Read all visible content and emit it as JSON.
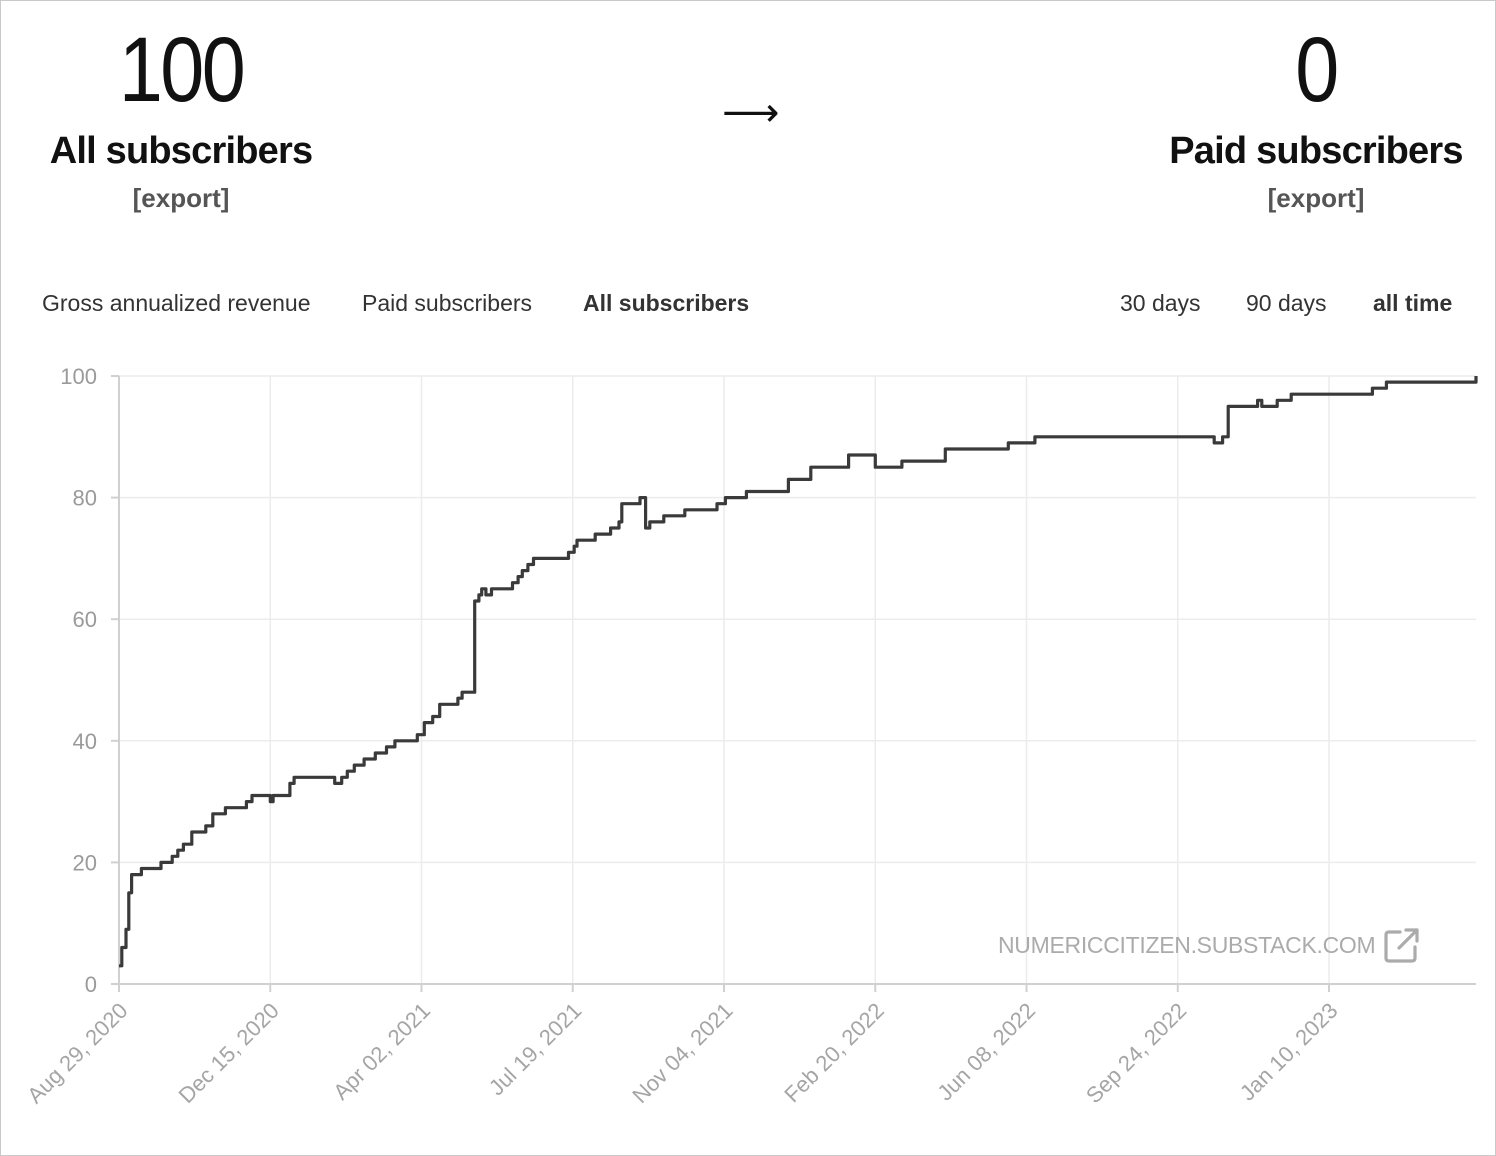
{
  "stats": {
    "left": {
      "value": "100",
      "label": "All subscribers",
      "export": "[export]"
    },
    "arrow": "⟶",
    "right": {
      "value": "0",
      "label": "Paid subscribers",
      "export": "[export]"
    }
  },
  "metric_tabs": [
    {
      "label": "Gross annualized revenue",
      "active": false
    },
    {
      "label": "Paid subscribers",
      "active": false
    },
    {
      "label": "All subscribers",
      "active": true
    }
  ],
  "range_tabs": [
    {
      "label": "30 days",
      "active": false
    },
    {
      "label": "90 days",
      "active": false
    },
    {
      "label": "all time",
      "active": true
    }
  ],
  "watermark": {
    "text": "NUMERICCITIZEN.SUBSTACK.COM",
    "icon": "external-link-icon"
  },
  "colors": {
    "line": "#3a3a3a",
    "grid": "#ececec",
    "label": "#9a9a9a"
  },
  "chart_data": {
    "type": "line",
    "title": "",
    "xlabel": "",
    "ylabel": "",
    "ylim": [
      0,
      100
    ],
    "yticks": [
      0,
      20,
      40,
      60,
      80,
      100
    ],
    "xticks": [
      "Aug 29, 2020",
      "Dec 15, 2020",
      "Apr 02, 2021",
      "Jul 19, 2021",
      "Nov 04, 2021",
      "Feb 20, 2022",
      "Jun 08, 2022",
      "Sep 24, 2022",
      "Jan 10, 2023"
    ],
    "grid": true,
    "series": [
      {
        "name": "",
        "step": true,
        "x": [
          "2020-08-29",
          "2020-08-31",
          "2020-09-03",
          "2020-09-05",
          "2020-09-07",
          "2020-09-10",
          "2020-09-14",
          "2020-09-28",
          "2020-10-06",
          "2020-10-10",
          "2020-10-14",
          "2020-10-20",
          "2020-10-30",
          "2020-11-04",
          "2020-11-09",
          "2020-11-13",
          "2020-11-28",
          "2020-12-02",
          "2020-12-05",
          "2020-12-15",
          "2020-12-17",
          "2020-12-26",
          "2020-12-29",
          "2021-01-01",
          "2021-01-20",
          "2021-01-30",
          "2021-02-04",
          "2021-02-08",
          "2021-02-13",
          "2021-02-20",
          "2021-02-28",
          "2021-03-08",
          "2021-03-14",
          "2021-03-30",
          "2021-04-04",
          "2021-04-10",
          "2021-04-15",
          "2021-04-28",
          "2021-05-01",
          "2021-05-10",
          "2021-05-13",
          "2021-05-15",
          "2021-05-18",
          "2021-05-22",
          "2021-06-02",
          "2021-06-06",
          "2021-06-10",
          "2021-06-13",
          "2021-06-17",
          "2021-06-21",
          "2021-06-26",
          "2021-07-16",
          "2021-07-20",
          "2021-07-22",
          "2021-07-24",
          "2021-07-26",
          "2021-08-04",
          "2021-08-15",
          "2021-08-21",
          "2021-08-23",
          "2021-09-05",
          "2021-09-07",
          "2021-09-09",
          "2021-09-12",
          "2021-09-22",
          "2021-10-07",
          "2021-10-30",
          "2021-11-05",
          "2021-11-20",
          "2021-12-20",
          "2022-01-01",
          "2022-01-05",
          "2022-02-01",
          "2022-02-20",
          "2022-03-09",
          "2022-03-11",
          "2022-04-11",
          "2022-05-26",
          "2022-06-10",
          "2022-06-14",
          "2022-07-28",
          "2022-10-20",
          "2022-10-24",
          "2022-10-26",
          "2022-10-30",
          "2022-11-20",
          "2022-11-23",
          "2022-12-04",
          "2022-12-14",
          "2022-12-27",
          "2023-02-10",
          "2023-02-20",
          "2023-04-06",
          "2023-04-25"
        ],
        "y": [
          3,
          6,
          9,
          15,
          18,
          18,
          19,
          20,
          21,
          22,
          23,
          25,
          26,
          28,
          28,
          29,
          30,
          31,
          31,
          30,
          31,
          31,
          33,
          34,
          34,
          33,
          34,
          35,
          36,
          37,
          38,
          39,
          40,
          41,
          43,
          44,
          46,
          47,
          48,
          63,
          64,
          65,
          64,
          65,
          65,
          66,
          67,
          68,
          69,
          70,
          70,
          71,
          72,
          73,
          73,
          73,
          74,
          75,
          76,
          79,
          80,
          80,
          75,
          76,
          77,
          78,
          79,
          80,
          81,
          83,
          83,
          85,
          87,
          85,
          85,
          86,
          88,
          89,
          89,
          90,
          90,
          89,
          89,
          90,
          95,
          96,
          95,
          96,
          97,
          97,
          98,
          99,
          99,
          100
        ]
      }
    ]
  }
}
